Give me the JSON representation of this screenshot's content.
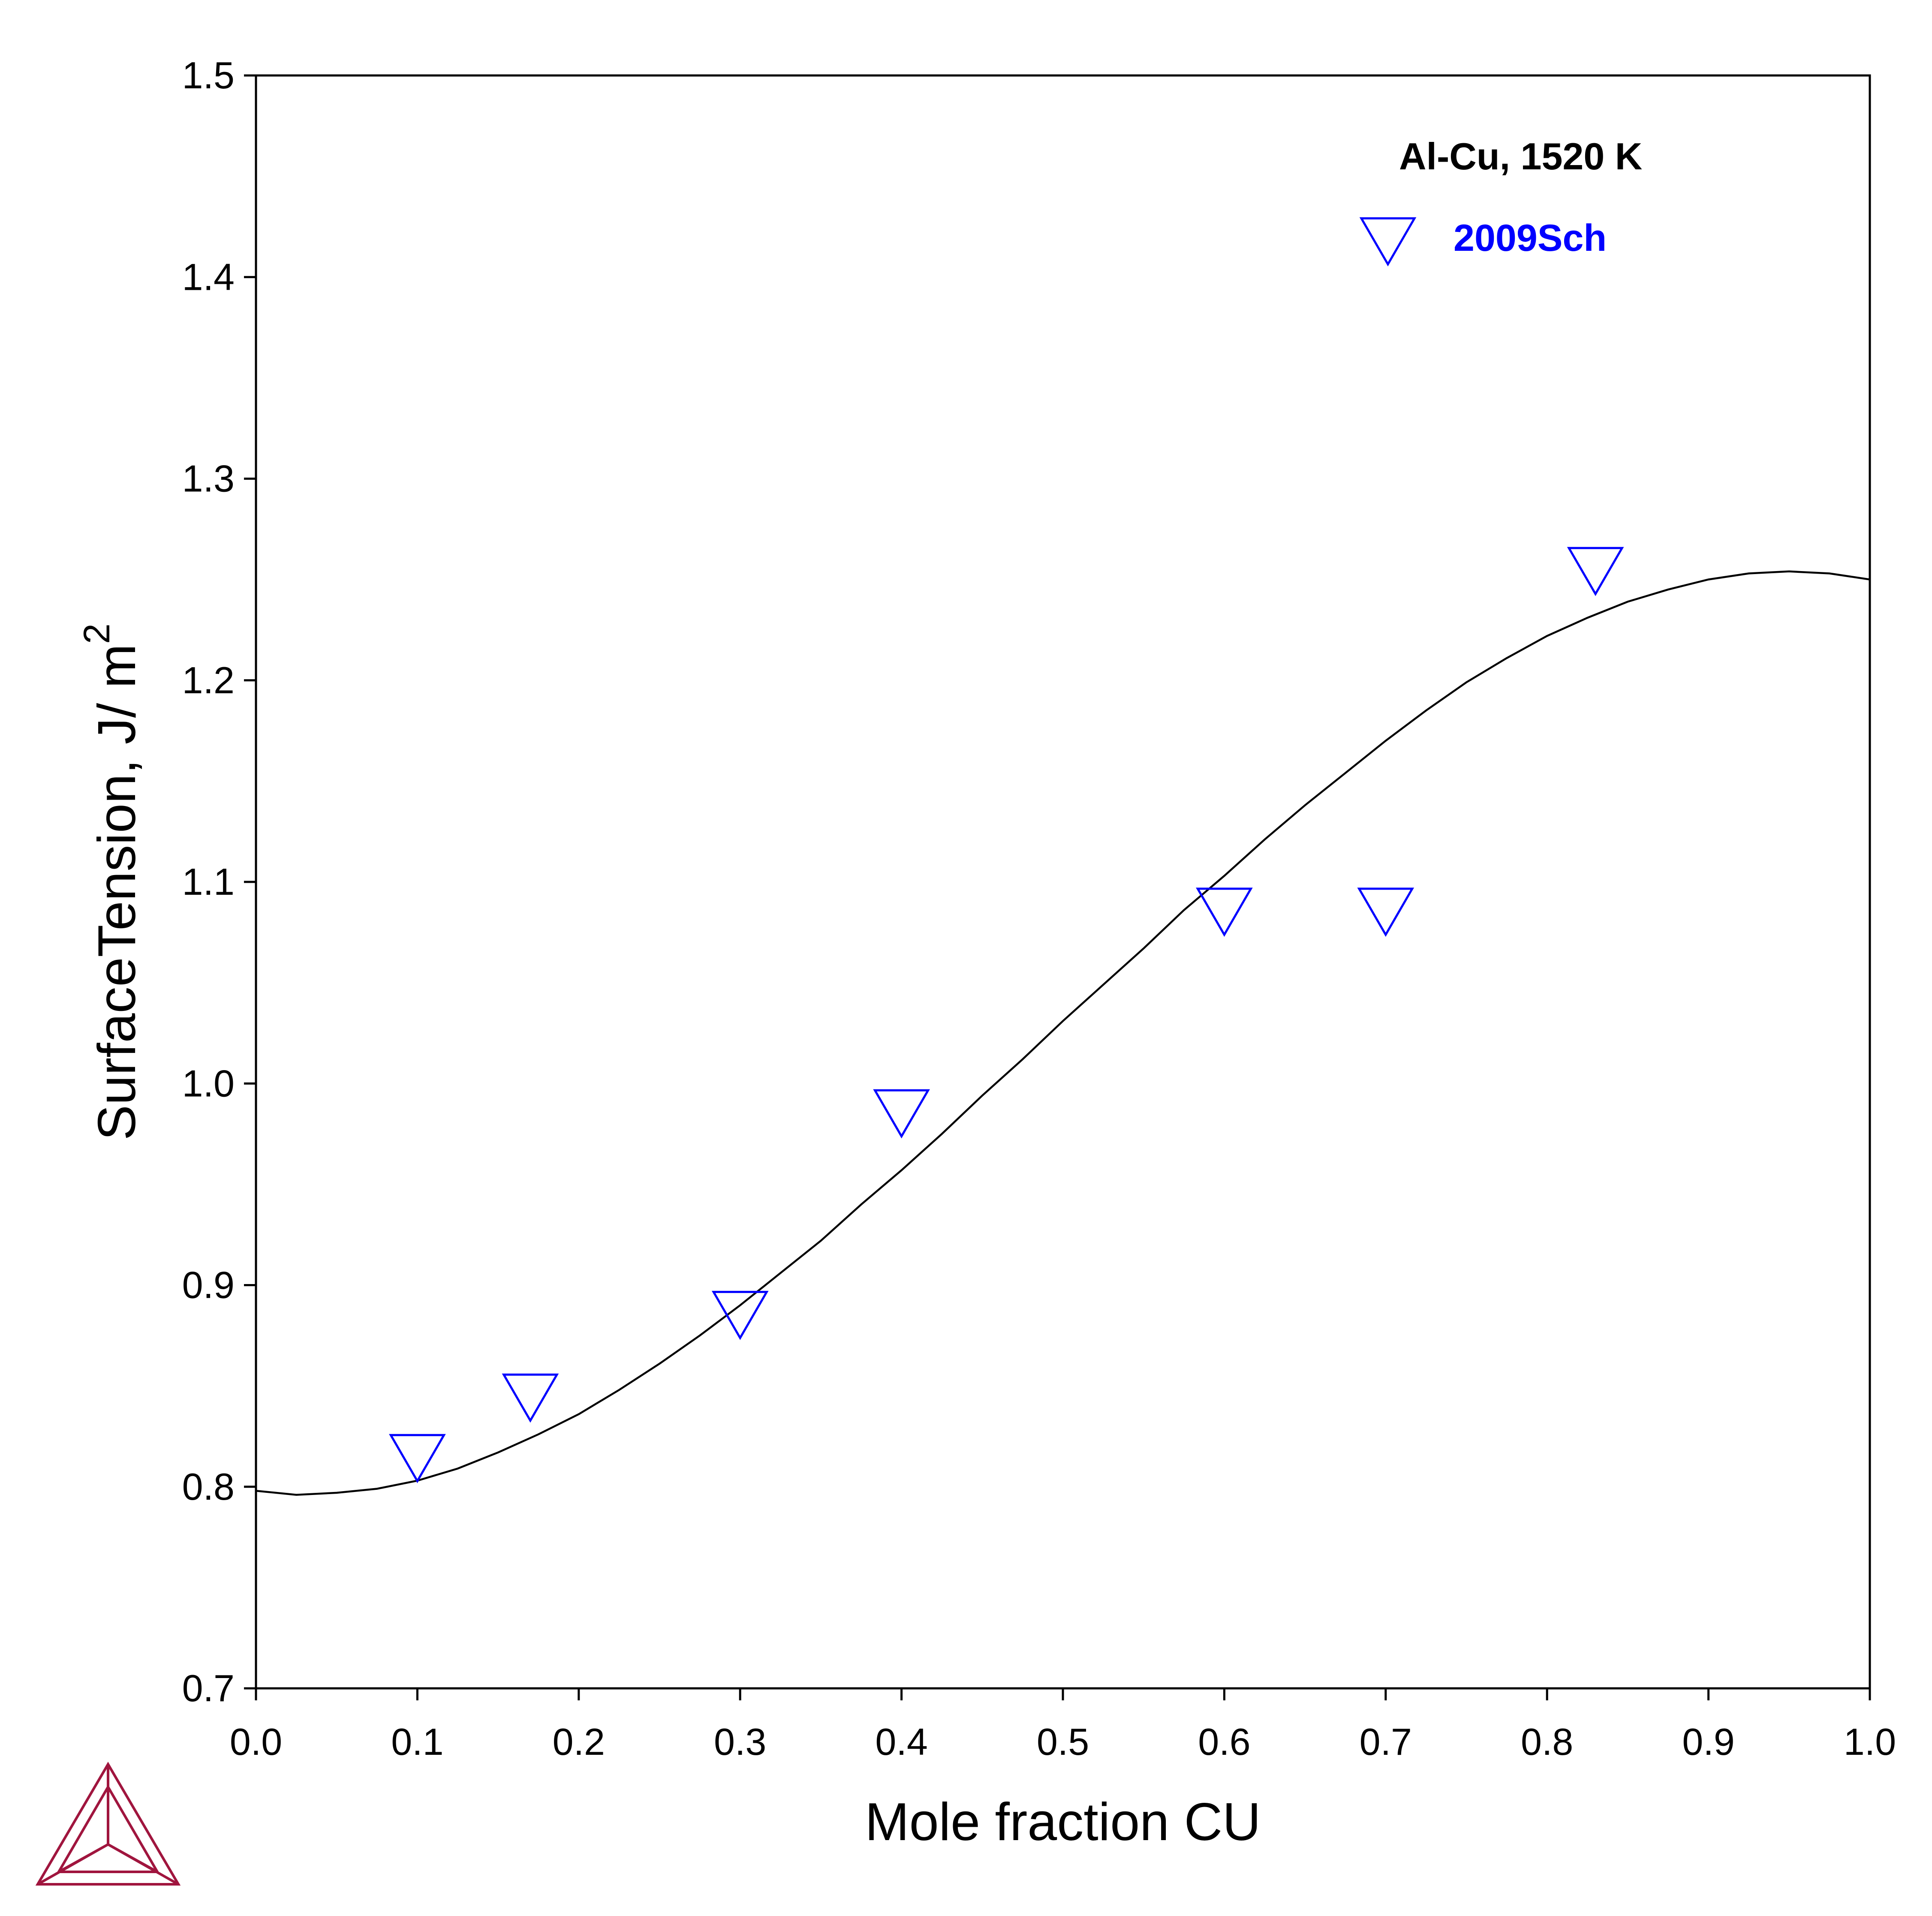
{
  "chart_data": {
    "type": "line",
    "title": "",
    "xlabel": "Mole fraction CU",
    "ylabel": {
      "text": "SurfaceTension, J/ m",
      "superscript": "2"
    },
    "xlim": [
      0.0,
      1.0
    ],
    "ylim": [
      0.7,
      1.5
    ],
    "xticks": [
      "0.0",
      "0.1",
      "0.2",
      "0.3",
      "0.4",
      "0.5",
      "0.6",
      "0.7",
      "0.8",
      "0.9",
      "1.0"
    ],
    "yticks": [
      "0.7",
      "0.8",
      "0.9",
      "1.0",
      "1.1",
      "1.2",
      "1.3",
      "1.4",
      "1.5"
    ],
    "grid": false,
    "annotation": "Al-Cu, 1520 K",
    "legend_position": "top-right",
    "series": [
      {
        "kind": "line",
        "color": "#000000",
        "x": [
          0.0,
          0.025,
          0.05,
          0.075,
          0.1,
          0.125,
          0.15,
          0.175,
          0.2,
          0.225,
          0.25,
          0.275,
          0.3,
          0.325,
          0.35,
          0.375,
          0.4,
          0.425,
          0.45,
          0.475,
          0.5,
          0.525,
          0.55,
          0.575,
          0.6,
          0.625,
          0.65,
          0.675,
          0.7,
          0.725,
          0.75,
          0.775,
          0.8,
          0.825,
          0.85,
          0.875,
          0.9,
          0.925,
          0.95,
          0.975,
          1.0
        ],
        "y": [
          0.798,
          0.796,
          0.797,
          0.799,
          0.803,
          0.809,
          0.817,
          0.826,
          0.836,
          0.848,
          0.861,
          0.875,
          0.89,
          0.906,
          0.922,
          0.94,
          0.957,
          0.975,
          0.994,
          1.012,
          1.031,
          1.049,
          1.067,
          1.086,
          1.103,
          1.121,
          1.138,
          1.154,
          1.17,
          1.185,
          1.199,
          1.211,
          1.222,
          1.231,
          1.239,
          1.245,
          1.25,
          1.253,
          1.254,
          1.253,
          1.25
        ]
      },
      {
        "kind": "scatter",
        "name": "2009Sch",
        "color": "#0000ff",
        "marker": "triangle-down",
        "x": [
          0.1,
          0.17,
          0.3,
          0.4,
          0.6,
          0.7,
          0.83
        ],
        "y": [
          0.818,
          0.848,
          0.889,
          0.989,
          1.089,
          1.089,
          1.258
        ]
      }
    ]
  },
  "logo": {
    "name": "thermo-calc-logo",
    "color": "#a0153e"
  }
}
